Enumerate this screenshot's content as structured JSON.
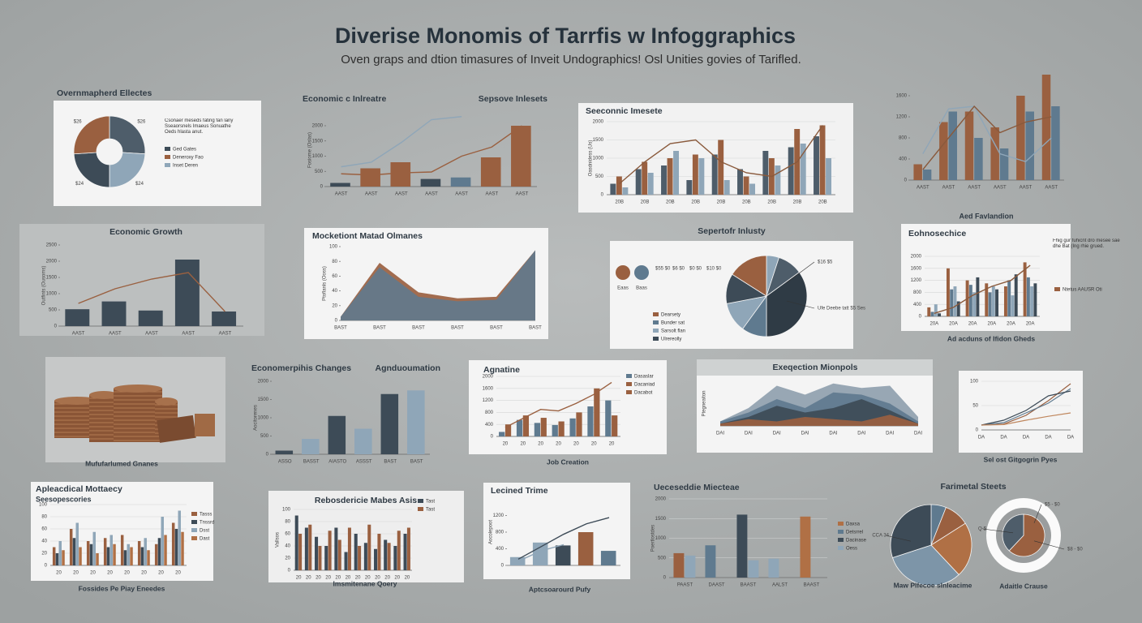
{
  "title": "Diverise Monomis of Tarrfis w Infoggraphics",
  "subtitle": "Oven graps and dtion timasures of Inveit Undographics! Osl Unities govies of Tarifled.",
  "chart_data": [
    {
      "type": "pie",
      "title": "Overnmapherd Ellectes",
      "donut": true,
      "values": [
        26,
        24,
        24,
        26
      ],
      "value_labels": [
        "$26",
        "$24",
        "$24",
        "$26"
      ],
      "colors": [
        "#4e5d6a",
        "#8fa6b8",
        "#3d4b57",
        "#9a6040"
      ],
      "note": "Csonaer meseds fating fan lany Sseaorsnels Imaeus Sonuathe Oeds hlasta anut.",
      "legend": [
        {
          "name": "Ged Gates",
          "color": "#3d4b57"
        },
        {
          "name": "Deneroxy Fao",
          "color": "#9a6040"
        },
        {
          "name": "Inset Deren",
          "color": "#8fa6b8"
        }
      ]
    },
    {
      "type": "bar",
      "title": "Economic c Inlreatre",
      "subtitle": "Sepsove Inlesets",
      "ylabel": "Fosiome (Oslas)",
      "categories": [
        "AAST",
        "AAST",
        "AAST",
        "AAST",
        "AAST",
        "AAST",
        "AAST"
      ],
      "ylim": [
        0,
        2400
      ],
      "yticks": [
        0,
        500,
        1000,
        1500,
        2000
      ],
      "series": [
        {
          "colors": [
            "#3d4b57",
            "#9a6040",
            "#9a6040",
            "#3d4b57",
            "#5f7a8f",
            "#9a6040",
            "#9a6040"
          ],
          "values": [
            120,
            600,
            800,
            250,
            300,
            960,
            2000
          ]
        },
        {
          "type": "line",
          "color": "#9a6040",
          "values": [
            420,
            380,
            450,
            480,
            1000,
            1300,
            2000
          ]
        },
        {
          "type": "line",
          "color": "#8fa6b8",
          "values": [
            650,
            800,
            1450,
            2200,
            2300,
            null,
            null
          ]
        }
      ]
    },
    {
      "type": "bar",
      "title": "Seeconnic Imesete",
      "ylabel": "Oasdnidess (Us)",
      "grid": true,
      "categories": [
        "20B",
        "20B",
        "20B",
        "20B",
        "20B",
        "20B",
        "20B",
        "20B",
        "20B"
      ],
      "ylim": [
        0,
        2000
      ],
      "yticks": [
        0,
        500,
        1000,
        1500,
        2000
      ],
      "series": [
        {
          "color": "#4e5d6a",
          "values": [
            300,
            700,
            800,
            400,
            1100,
            700,
            1200,
            1300,
            1600
          ]
        },
        {
          "color": "#9a6040",
          "values": [
            500,
            900,
            1000,
            1100,
            1500,
            500,
            1000,
            1800,
            1900
          ]
        },
        {
          "color": "#8fa6b8",
          "values": [
            200,
            600,
            1200,
            1000,
            400,
            300,
            800,
            1400,
            1000
          ]
        },
        {
          "type": "line",
          "color": "#8a5a3c",
          "values": [
            300,
            900,
            1400,
            1500,
            900,
            600,
            500,
            900,
            1900
          ]
        }
      ]
    },
    {
      "type": "bar",
      "categories": [
        "AAST",
        "AAST",
        "AAST",
        "AAST",
        "AAST",
        "AAST"
      ],
      "ylim": [
        0,
        2000
      ],
      "yticks": [
        0,
        400,
        800,
        1200,
        1600
      ],
      "series": [
        {
          "color": "#9a6040",
          "values": [
            300,
            1100,
            1300,
            1000,
            1600,
            2000
          ]
        },
        {
          "color": "#5f7a8f",
          "values": [
            200,
            1300,
            800,
            600,
            1300,
            1400
          ]
        },
        {
          "type": "line",
          "color": "#8fa6b8",
          "values": [
            500,
            1350,
            1400,
            500,
            350,
            800
          ]
        },
        {
          "type": "line",
          "color": "#8a5a3c",
          "values": [
            200,
            800,
            1400,
            900,
            1100,
            1200
          ]
        }
      ]
    },
    {
      "type": "bar",
      "title": "Economic Growth",
      "ylabel": "Outfints (Ousoms)",
      "categories": [
        "AAST",
        "AAST",
        "AAST",
        "AAST",
        "AAST"
      ],
      "ylim": [
        0,
        2500
      ],
      "yticks": [
        0,
        500,
        1000,
        1500,
        2000,
        2500
      ],
      "series": [
        {
          "color": "#3d4b57",
          "values": [
            520,
            760,
            480,
            2050,
            450
          ]
        },
        {
          "type": "line",
          "color": "#9a6040",
          "values": [
            700,
            1150,
            1450,
            1650,
            450
          ]
        }
      ]
    },
    {
      "type": "area",
      "title": "Mocketiont Matad Olmanes",
      "ylabel": "Ptoflanls (Ooss)",
      "categories": [
        "BAST",
        "BAST",
        "BAST",
        "BAST",
        "BAST",
        "BAST"
      ],
      "ylim": [
        0,
        100
      ],
      "yticks": [
        0,
        20,
        40,
        60,
        80,
        100
      ],
      "series": [
        {
          "color": "#9a6040",
          "values": [
            5,
            78,
            38,
            30,
            32,
            95
          ]
        },
        {
          "color": "#62798c",
          "values": [
            5,
            72,
            32,
            26,
            28,
            95
          ]
        }
      ]
    },
    {
      "type": "pie",
      "title": "Sepertofr Inlusty",
      "values": [
        5,
        10,
        35,
        10,
        12,
        12,
        16
      ],
      "colors": [
        "#8fa6b8",
        "#4e5d6a",
        "#2f3b45",
        "#5f7a8f",
        "#8fa6b8",
        "#3d4b57",
        "#9a6040"
      ],
      "kpis": [
        {
          "name": "Eaas",
          "color": "#9a6040"
        },
        {
          "name": "Baas",
          "color": "#5f7a8f"
        }
      ],
      "stats": [
        "$55 $0",
        "$6 $0",
        "$0 $0",
        "$10 $0"
      ],
      "annotations": [
        "$16 $5",
        "Ufe Deebe tatt $5 Ses"
      ],
      "legend": [
        {
          "name": "Dearsety",
          "color": "#9a6040"
        },
        {
          "name": "Bunder sat",
          "color": "#5f7a8f"
        },
        {
          "name": "Sarsolt flan",
          "color": "#8fa6b8"
        },
        {
          "name": "Ulrereolly",
          "color": "#3d4b57"
        }
      ]
    },
    {
      "type": "bar",
      "header": "Aed Favlandion",
      "title": "Eohnosechice",
      "caption": "Ad acduns of Ifidon Gheds",
      "note": "Fhig gur fuhicnt dro mesee sae dhe Bat (Ing rhie grued.",
      "grid": true,
      "categories": [
        "20A",
        "20A",
        "20A",
        "20A",
        "20A",
        "20A"
      ],
      "ylim": [
        0,
        2000
      ],
      "yticks": [
        0,
        400,
        800,
        1200,
        1600,
        2000
      ],
      "series": [
        {
          "name": "Ntetus AAUSR Oti",
          "color": "#9a6040",
          "values": [
            300,
            1600,
            1200,
            1100,
            1000,
            1800
          ]
        },
        {
          "color": "#5f7a8f",
          "values": [
            150,
            900,
            1050,
            800,
            1200,
            1300
          ]
        },
        {
          "color": "#8fa6b8",
          "values": [
            400,
            1000,
            800,
            1000,
            700,
            1000
          ]
        },
        {
          "color": "#3d4b57",
          "values": [
            100,
            500,
            1300,
            900,
            1400,
            1100
          ]
        },
        {
          "type": "line",
          "color": "#8a5a3c",
          "values": [
            100,
            300,
            700,
            1000,
            1200,
            1700
          ]
        }
      ]
    },
    {
      "type": "illustration",
      "caption": "Mufufarlumed Gnanes"
    },
    {
      "type": "bar",
      "title": "Economerpihis Changes",
      "subtitle": "Agnduoumation",
      "ylabel": "Aocitorenes",
      "categories": [
        "ASSO",
        "BASST",
        "AIASTO",
        "ASSST",
        "BAST",
        "BAST"
      ],
      "ylim": [
        0,
        2000
      ],
      "yticks": [
        0,
        500,
        1000,
        1500,
        2000
      ],
      "series": [
        {
          "colors": [
            "#3d4b57",
            "#8fa6b8",
            "#3d4b57",
            "#8fa6b8",
            "#3d4b57",
            "#8fa6b8"
          ],
          "values": [
            100,
            420,
            1050,
            700,
            1650,
            1750
          ]
        }
      ]
    },
    {
      "type": "bar",
      "title": "Agnatine",
      "caption": "Job Creation",
      "grid": true,
      "categories": [
        "20",
        "20",
        "20",
        "20",
        "20",
        "20",
        "20"
      ],
      "ylim": [
        0,
        2000
      ],
      "yticks": [
        0,
        400,
        800,
        1200,
        1600,
        2000
      ],
      "series": [
        {
          "name": "Dasaslar",
          "color": "#5f7a8f",
          "values": [
            150,
            550,
            450,
            380,
            600,
            1000,
            1200
          ]
        },
        {
          "name": "Dacaniad",
          "color": "#9a6040",
          "values": [
            400,
            700,
            620,
            500,
            800,
            1600,
            700
          ]
        },
        {
          "name": "Dacabot",
          "type": "line",
          "color": "#9a6040",
          "values": [
            300,
            600,
            900,
            850,
            1100,
            1400,
            1800
          ]
        }
      ]
    },
    {
      "type": "area",
      "title": "Exeqection Mionpols",
      "ylabel": "Ptegneaiton",
      "categories": [
        "DAI",
        "DAI",
        "DAI",
        "DAI",
        "DAI",
        "DAI",
        "DAI",
        "DAI"
      ],
      "ylim": [
        0,
        100
      ],
      "yticks": [],
      "series": [
        {
          "color": "#8fa0ae",
          "values": [
            10,
            40,
            90,
            70,
            95,
            85,
            90,
            20
          ]
        },
        {
          "color": "#5f7a8f",
          "values": [
            10,
            30,
            60,
            40,
            75,
            70,
            50,
            10
          ]
        },
        {
          "color": "#3d4b57",
          "values": [
            5,
            20,
            45,
            30,
            40,
            60,
            35,
            5
          ]
        },
        {
          "color": "#9a6040",
          "values": [
            5,
            15,
            10,
            20,
            15,
            10,
            25,
            5
          ]
        }
      ]
    },
    {
      "type": "line",
      "caption": "Sel ost Gitgogrin Pyes",
      "grid": true,
      "categories": [
        "DA",
        "DA",
        "DA",
        "DA",
        "DA"
      ],
      "ylim": [
        0,
        100
      ],
      "yticks": [
        0,
        50,
        100
      ],
      "series": [
        {
          "color": "#9a6040",
          "values": [
            10,
            12,
            30,
            60,
            95
          ]
        },
        {
          "color": "#5f7a8f",
          "values": [
            10,
            15,
            35,
            55,
            85
          ]
        },
        {
          "color": "#3d4b57",
          "values": [
            10,
            20,
            40,
            70,
            80
          ]
        },
        {
          "color": "#c0875e",
          "values": [
            10,
            11,
            20,
            28,
            35
          ]
        }
      ]
    },
    {
      "type": "bar",
      "title": "Apleacdical Mottaecy",
      "subtitle": "Seesopescories",
      "caption": "Fossides Pe Piay Eneedes",
      "grid": true,
      "categories": [
        "20",
        "20",
        "20",
        "20",
        "20",
        "20",
        "20",
        "20"
      ],
      "ylim": [
        0,
        100
      ],
      "yticks": [
        0,
        20,
        40,
        60,
        80,
        100
      ],
      "series": [
        {
          "name": "Tasss",
          "color": "#9a6040",
          "values": [
            30,
            60,
            40,
            45,
            50,
            40,
            35,
            70
          ]
        },
        {
          "name": "Tnssrd",
          "color": "#3d4b57",
          "values": [
            20,
            45,
            35,
            30,
            25,
            30,
            45,
            60
          ]
        },
        {
          "name": "Dsst",
          "color": "#8fa6b8",
          "values": [
            40,
            70,
            55,
            50,
            35,
            45,
            80,
            90
          ]
        },
        {
          "name": "Dast",
          "color": "#b07045",
          "values": [
            25,
            30,
            20,
            35,
            30,
            25,
            50,
            55
          ]
        }
      ]
    },
    {
      "type": "bar",
      "title": "Rebosdericie Mabes Asis",
      "caption": "Imsmitenane Qoery",
      "ylabel": "Vallsos",
      "grid": true,
      "categories": [
        "20",
        "20",
        "20",
        "20",
        "20",
        "20",
        "20",
        "20",
        "20",
        "20",
        "20",
        "20"
      ],
      "ylim": [
        0,
        100
      ],
      "yticks": [
        0,
        20,
        40,
        60,
        80,
        100
      ],
      "series": [
        {
          "name": "Tast",
          "color": "#3d4b57",
          "values": [
            90,
            70,
            55,
            40,
            70,
            30,
            60,
            45,
            35,
            50,
            40,
            60
          ]
        },
        {
          "name": "Tast",
          "color": "#9a6040",
          "values": [
            60,
            75,
            40,
            65,
            50,
            70,
            40,
            75,
            60,
            45,
            65,
            70
          ]
        }
      ]
    },
    {
      "type": "bar",
      "title": "Lecined Trime",
      "caption": "Aptcsoarourd Pufy",
      "ylabel": "Aocolepoot",
      "categories": [
        null,
        null,
        null,
        null,
        null
      ],
      "ylim": [
        0,
        1600
      ],
      "yticks": [
        0,
        400,
        800,
        1200
      ],
      "series": [
        {
          "colors": [
            "#8fa6b8",
            "#8fa6b8",
            "#3d4b57",
            "#9a6040",
            "#5f7a8f"
          ],
          "values": [
            200,
            550,
            480,
            800,
            350
          ]
        },
        {
          "type": "line",
          "color": "#3d4b57",
          "values": [
            150,
            450,
            750,
            1000,
            1150
          ]
        },
        {
          "type": "line",
          "color": "#8fa6b8",
          "values": [
            100,
            350,
            500,
            null,
            null
          ]
        }
      ]
    },
    {
      "type": "bar",
      "title": "Ueceseddie Miecteae",
      "ylabel": "Poertlostdes",
      "grid": true,
      "categories": [
        "PAAST",
        "DAAST",
        "BAAST",
        "AALST",
        "BAAST"
      ],
      "ylim": [
        0,
        2000
      ],
      "yticks": [
        0,
        500,
        1000,
        1500,
        2000
      ],
      "series": [
        {
          "colors": [
            "#9a6040",
            "#5f7a8f",
            "#3d4b57",
            "#8fa6b8",
            "#b07045"
          ],
          "values": [
            620,
            820,
            1600,
            480,
            1550
          ]
        },
        {
          "color": "#8fa6b8",
          "values": [
            560,
            null,
            440,
            null,
            null
          ]
        }
      ],
      "legend": [
        {
          "name": "Daxsa",
          "color": "#b07045"
        },
        {
          "name": "Detsrrel",
          "color": "#5f7a8f"
        },
        {
          "name": "Dacinase",
          "color": "#3d4b57"
        },
        {
          "name": "Oess",
          "color": "#8fa6b8"
        }
      ]
    },
    {
      "type": "pie",
      "title": "Farimetal Steets",
      "caption": "Maw Plfecoe slnleacime",
      "values": [
        6,
        10,
        22,
        32,
        30
      ],
      "colors": [
        "#5f7a8f",
        "#9a6040",
        "#b07045",
        "#7d95a8",
        "#3d4b57"
      ],
      "annotations": [
        "CCA 34"
      ]
    },
    {
      "type": "pie",
      "caption": "Adaitle Crause",
      "values": [
        62,
        38
      ],
      "colors": [
        "#9a6040",
        "#4e5d6a"
      ],
      "annotations": [
        "$5 - $0",
        "Q-$",
        "$8 - $0"
      ]
    }
  ]
}
